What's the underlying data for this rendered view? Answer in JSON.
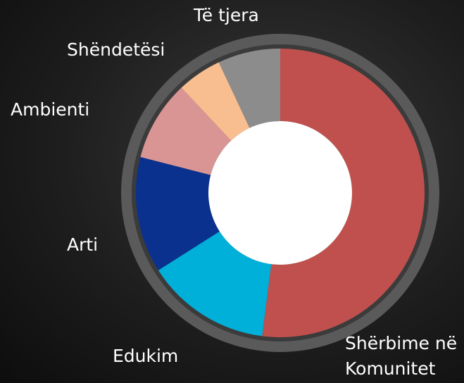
{
  "chart_data": {
    "type": "donut",
    "categories": [
      "Shërbime në Komunitet",
      "Edukim",
      "Arti",
      "Ambienti",
      "Shëndetësi",
      "Të tjera"
    ],
    "values": [
      52,
      14,
      13,
      9,
      5,
      7
    ],
    "colors": [
      "#c0504d",
      "#00b0d8",
      "#0b318f",
      "#d99594",
      "#f9be8f",
      "#8c8c8c"
    ]
  }
}
